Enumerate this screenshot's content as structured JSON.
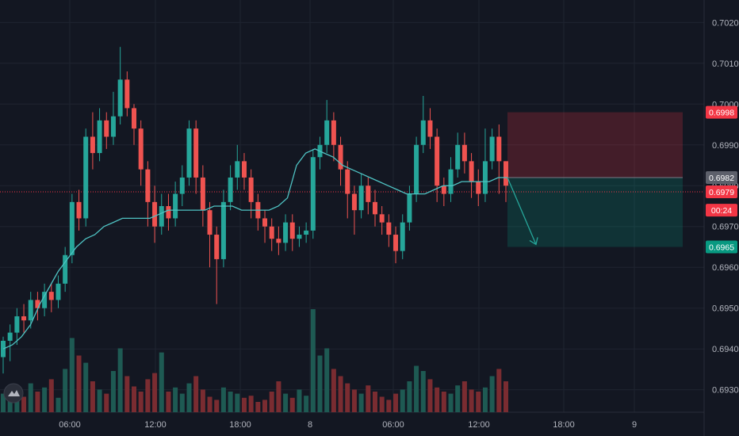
{
  "chart_data": {
    "type": "candlestick",
    "y_ticks": [
      "0.7020",
      "0.7010",
      "0.7000",
      "0.6990",
      "0.6980",
      "0.6970",
      "0.6960",
      "0.6950",
      "0.6940",
      "0.6930"
    ],
    "ylim": [
      0.69245,
      0.70255
    ],
    "x_ticks": [
      "06:00",
      "12:00",
      "18:00",
      "8",
      "06:00",
      "12:00",
      "18:00",
      "9"
    ],
    "price_tags": {
      "stop": "0.6998",
      "entry": "0.6982",
      "last": "0.6979",
      "countdown": "00:24",
      "target": "0.6965"
    },
    "levels": {
      "stop": 0.6998,
      "entry": 0.6982,
      "last": 0.69785,
      "target": 0.6965
    },
    "candles": [
      [
        0.6938,
        0.6942,
        0.6934,
        0.6943
      ],
      [
        0.6942,
        0.6944,
        0.6937,
        0.6946
      ],
      [
        0.6944,
        0.6948,
        0.6941,
        0.695
      ],
      [
        0.6948,
        0.6947,
        0.6944,
        0.6951
      ],
      [
        0.6947,
        0.6952,
        0.6945,
        0.6954
      ],
      [
        0.6952,
        0.695,
        0.6947,
        0.6954
      ],
      [
        0.695,
        0.6954,
        0.6948,
        0.6956
      ],
      [
        0.6954,
        0.6952,
        0.6949,
        0.6956
      ],
      [
        0.6952,
        0.6956,
        0.695,
        0.6958
      ],
      [
        0.6956,
        0.6963,
        0.6954,
        0.6965
      ],
      [
        0.6963,
        0.6976,
        0.6961,
        0.6978
      ],
      [
        0.6976,
        0.6972,
        0.6969,
        0.6979
      ],
      [
        0.6972,
        0.6992,
        0.697,
        0.6994
      ],
      [
        0.6992,
        0.6988,
        0.6984,
        0.6998
      ],
      [
        0.6988,
        0.6996,
        0.6986,
        0.6999
      ],
      [
        0.6996,
        0.6992,
        0.6989,
        0.6998
      ],
      [
        0.6992,
        0.6997,
        0.699,
        0.7003
      ],
      [
        0.6997,
        0.7006,
        0.6995,
        0.7014
      ],
      [
        0.7006,
        0.6999,
        0.6997,
        0.7008
      ],
      [
        0.6999,
        0.6994,
        0.699,
        0.7
      ],
      [
        0.6994,
        0.6984,
        0.698,
        0.6996
      ],
      [
        0.6984,
        0.6976,
        0.697,
        0.6986
      ],
      [
        0.6976,
        0.697,
        0.6966,
        0.698
      ],
      [
        0.697,
        0.6975,
        0.6968,
        0.6978
      ],
      [
        0.6975,
        0.6972,
        0.6969,
        0.6978
      ],
      [
        0.6972,
        0.6978,
        0.697,
        0.6981
      ],
      [
        0.6978,
        0.6982,
        0.6975,
        0.6985
      ],
      [
        0.6982,
        0.6994,
        0.698,
        0.6996
      ],
      [
        0.6994,
        0.6982,
        0.6978,
        0.6996
      ],
      [
        0.6982,
        0.6974,
        0.697,
        0.6985
      ],
      [
        0.6974,
        0.6968,
        0.696,
        0.6976
      ],
      [
        0.6968,
        0.6962,
        0.6951,
        0.697
      ],
      [
        0.6962,
        0.6976,
        0.696,
        0.6979
      ],
      [
        0.6976,
        0.6982,
        0.6974,
        0.6985
      ],
      [
        0.6982,
        0.6986,
        0.6979,
        0.699
      ],
      [
        0.6986,
        0.6982,
        0.6979,
        0.6988
      ],
      [
        0.6982,
        0.6976,
        0.6972,
        0.6984
      ],
      [
        0.6976,
        0.6972,
        0.6969,
        0.6978
      ],
      [
        0.6972,
        0.697,
        0.6966,
        0.6974
      ],
      [
        0.697,
        0.6967,
        0.6964,
        0.6972
      ],
      [
        0.6967,
        0.6966,
        0.6963,
        0.697
      ],
      [
        0.6966,
        0.6971,
        0.6964,
        0.6973
      ],
      [
        0.6971,
        0.6967,
        0.6964,
        0.6973
      ],
      [
        0.6967,
        0.6968,
        0.6965,
        0.697
      ],
      [
        0.6968,
        0.6969,
        0.6966,
        0.6971
      ],
      [
        0.6969,
        0.6987,
        0.6967,
        0.6989
      ],
      [
        0.6987,
        0.699,
        0.6984,
        0.6992
      ],
      [
        0.699,
        0.6996,
        0.6988,
        0.7001
      ],
      [
        0.6996,
        0.699,
        0.6986,
        0.6998
      ],
      [
        0.699,
        0.6984,
        0.698,
        0.6992
      ],
      [
        0.6984,
        0.6978,
        0.6972,
        0.6986
      ],
      [
        0.6978,
        0.6974,
        0.6968,
        0.698
      ],
      [
        0.6974,
        0.698,
        0.6972,
        0.6983
      ],
      [
        0.698,
        0.6976,
        0.6973,
        0.6982
      ],
      [
        0.6976,
        0.6973,
        0.697,
        0.6979
      ],
      [
        0.6973,
        0.6971,
        0.6968,
        0.6975
      ],
      [
        0.6971,
        0.6968,
        0.6965,
        0.6973
      ],
      [
        0.6968,
        0.6964,
        0.6961,
        0.697
      ],
      [
        0.6964,
        0.6971,
        0.6962,
        0.6973
      ],
      [
        0.6971,
        0.6978,
        0.6969,
        0.698
      ],
      [
        0.6978,
        0.699,
        0.6976,
        0.6992
      ],
      [
        0.699,
        0.6996,
        0.6988,
        0.7002
      ],
      [
        0.6996,
        0.6992,
        0.6989,
        0.6999
      ],
      [
        0.6992,
        0.698,
        0.6976,
        0.6994
      ],
      [
        0.698,
        0.6978,
        0.6975,
        0.6982
      ],
      [
        0.6978,
        0.6984,
        0.6976,
        0.6987
      ],
      [
        0.6984,
        0.699,
        0.6982,
        0.6993
      ],
      [
        0.699,
        0.6986,
        0.6983,
        0.6993
      ],
      [
        0.6986,
        0.6981,
        0.6977,
        0.6988
      ],
      [
        0.6981,
        0.6978,
        0.6975,
        0.6984
      ],
      [
        0.6978,
        0.6986,
        0.6976,
        0.6994
      ],
      [
        0.6986,
        0.6992,
        0.6984,
        0.6994
      ],
      [
        0.6992,
        0.6986,
        0.6978,
        0.6995
      ],
      [
        0.6986,
        0.698,
        0.6976,
        0.6986
      ]
    ],
    "ma_line": [
      0.694,
      0.6941,
      0.6943,
      0.6946,
      0.6951,
      0.6955,
      0.6959,
      0.6962,
      0.6965,
      0.6967,
      0.6968,
      0.697,
      0.6971,
      0.6972,
      0.6972,
      0.6972,
      0.6972,
      0.6973,
      0.6974,
      0.6974,
      0.6974,
      0.6974,
      0.6974,
      0.6975,
      0.6975,
      0.6975,
      0.6974,
      0.6974,
      0.6974,
      0.6974,
      0.6975,
      0.6977,
      0.6985,
      0.6988,
      0.6989,
      0.6988,
      0.6987,
      0.6985,
      0.6984,
      0.6983,
      0.6982,
      0.6981,
      0.698,
      0.6979,
      0.6978,
      0.6978,
      0.6978,
      0.6979,
      0.698,
      0.698,
      0.6981,
      0.6981,
      0.6981,
      0.6981,
      0.6982,
      0.6982
    ],
    "volumes": [
      0.18,
      0.12,
      0.22,
      0.15,
      0.28,
      0.2,
      0.24,
      0.32,
      0.14,
      0.42,
      0.72,
      0.55,
      0.48,
      0.3,
      0.22,
      0.18,
      0.4,
      0.62,
      0.35,
      0.25,
      0.2,
      0.32,
      0.38,
      0.58,
      0.2,
      0.24,
      0.18,
      0.28,
      0.35,
      0.22,
      0.15,
      0.12,
      0.24,
      0.2,
      0.18,
      0.14,
      0.16,
      0.1,
      0.12,
      0.2,
      0.3,
      0.18,
      0.14,
      0.22,
      0.16,
      1.0,
      0.55,
      0.62,
      0.42,
      0.35,
      0.28,
      0.22,
      0.18,
      0.26,
      0.2,
      0.15,
      0.12,
      0.18,
      0.22,
      0.3,
      0.45,
      0.4,
      0.32,
      0.24,
      0.2,
      0.18,
      0.26,
      0.3,
      0.22,
      0.2,
      0.24,
      0.35,
      0.42,
      0.3
    ]
  }
}
